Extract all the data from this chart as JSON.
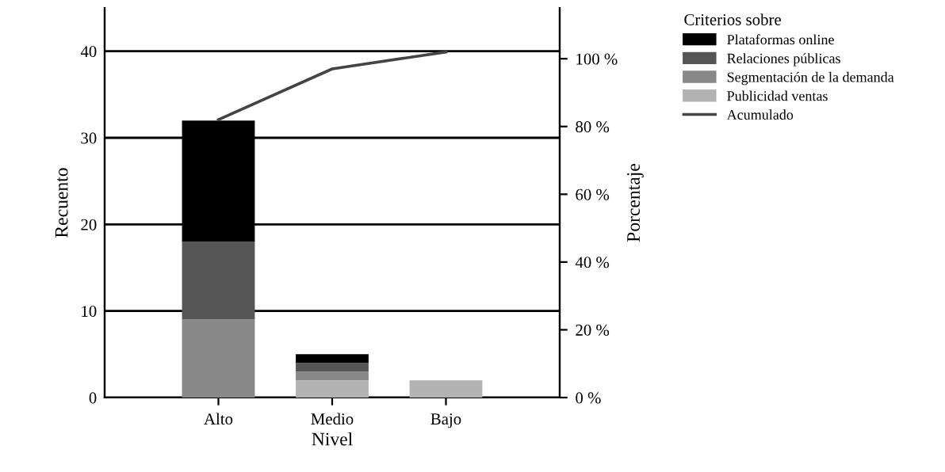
{
  "chart_data": {
    "type": "bar",
    "stacked": true,
    "xlabel": "Nivel",
    "ylabel": "Recuento",
    "y2label": "Porcentaje",
    "legend_title": "Criterios sobre",
    "legend": "right",
    "grid": "y",
    "categories": [
      "Alto",
      "Medio",
      "Bajo"
    ],
    "series": [
      {
        "name": "Publicidad ventas",
        "color": "#b3b3b3",
        "values": [
          0,
          2,
          2
        ]
      },
      {
        "name": "Segmentación de la demanda",
        "color": "#888888",
        "values": [
          9,
          1,
          0
        ]
      },
      {
        "name": "Relaciones públicas",
        "color": "#555555",
        "values": [
          9,
          1,
          0
        ]
      },
      {
        "name": "Plataformas online",
        "color": "#000000",
        "values": [
          14,
          1,
          0
        ]
      },
      {
        "name": "Acumulado",
        "type": "line",
        "axis": "y2",
        "color": "#444444",
        "values": [
          82,
          97,
          102
        ]
      }
    ],
    "ylim": [
      0,
      45
    ],
    "yticks": [
      0,
      10,
      20,
      30,
      40
    ],
    "y2lim": [
      0,
      115
    ],
    "y2ticks": [
      {
        "value": 0,
        "label": "0 %"
      },
      {
        "value": 20,
        "label": "20 %"
      },
      {
        "value": 40,
        "label": "40 %"
      },
      {
        "value": 60,
        "label": "60 %"
      },
      {
        "value": 80,
        "label": "80 %"
      },
      {
        "value": 100,
        "label": "100 %"
      }
    ]
  }
}
